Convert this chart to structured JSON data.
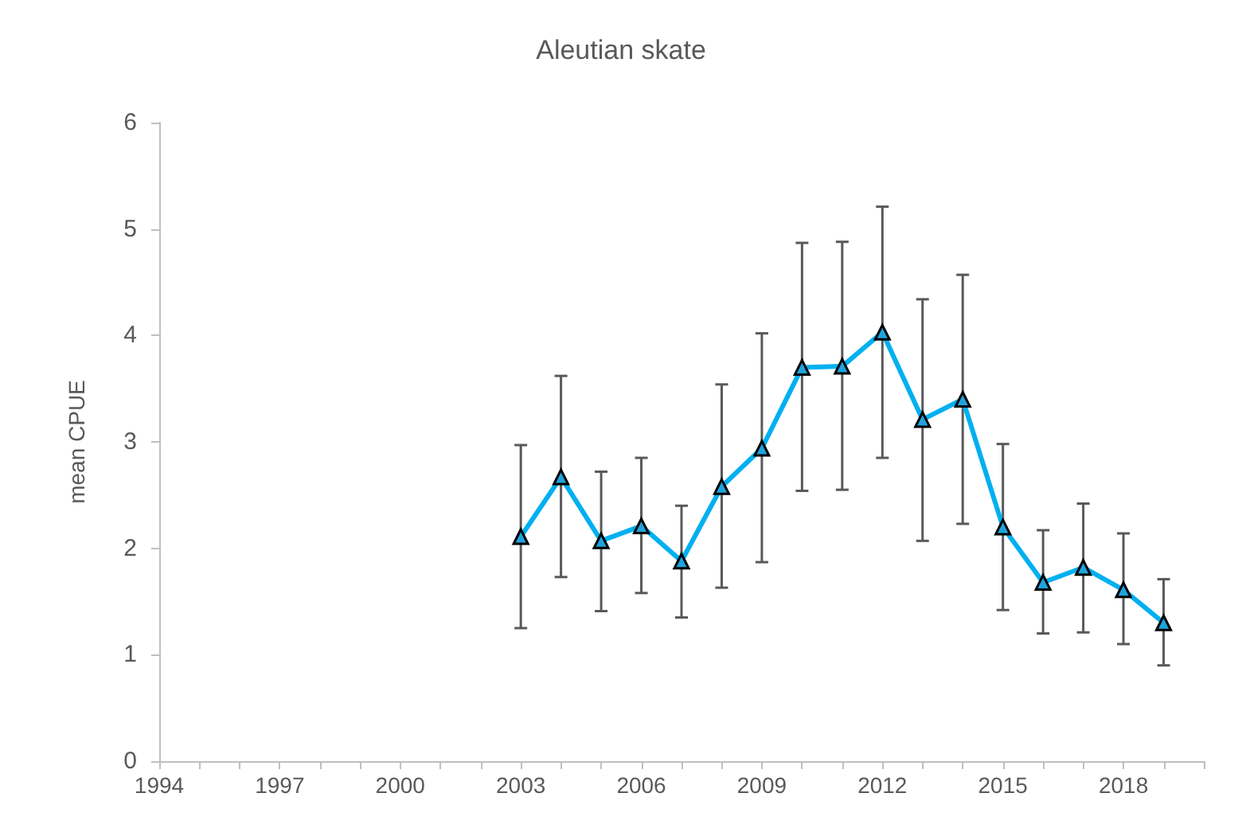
{
  "chart_data": {
    "type": "line",
    "title": "Aleutian skate",
    "ylabel": "mean CPUE",
    "x": [
      2003,
      2004,
      2005,
      2006,
      2007,
      2008,
      2009,
      2010,
      2011,
      2012,
      2013,
      2014,
      2015,
      2016,
      2017,
      2018,
      2019
    ],
    "series": [
      {
        "color": "#00b0f0",
        "values": [
          2.11,
          2.67,
          2.07,
          2.21,
          1.88,
          2.58,
          2.94,
          3.7,
          3.71,
          4.03,
          3.21,
          3.4,
          2.2,
          1.68,
          1.82,
          1.61,
          1.3
        ],
        "errors": [
          [
            1.25,
            2.97
          ],
          [
            1.73,
            3.62
          ],
          [
            1.41,
            2.72
          ],
          [
            1.58,
            2.85
          ],
          [
            1.35,
            2.4
          ],
          [
            1.63,
            3.54
          ],
          [
            1.87,
            4.02
          ],
          [
            2.54,
            4.87
          ],
          [
            2.55,
            4.88
          ],
          [
            2.85,
            5.21
          ],
          [
            2.07,
            4.34
          ],
          [
            2.23,
            4.57
          ],
          [
            1.42,
            2.98
          ],
          [
            1.2,
            2.17
          ],
          [
            1.21,
            2.42
          ],
          [
            1.1,
            2.14
          ],
          [
            0.9,
            1.71
          ]
        ]
      }
    ],
    "xlim": [
      1994,
      2020
    ],
    "xticks": [
      1994,
      {
        "value": 1995,
        "label": null
      },
      {
        "value": 1996,
        "label": null
      },
      1997,
      {
        "value": 1998,
        "label": null
      },
      {
        "value": 1999,
        "label": null
      },
      2000,
      {
        "value": 2001,
        "label": null
      },
      {
        "value": 2002,
        "label": null
      },
      2003,
      {
        "value": 2004,
        "label": null
      },
      {
        "value": 2005,
        "label": null
      },
      2006,
      {
        "value": 2007,
        "label": null
      },
      {
        "value": 2008,
        "label": null
      },
      2009,
      {
        "value": 2010,
        "label": null
      },
      {
        "value": 2011,
        "label": null
      },
      2012,
      {
        "value": 2013,
        "label": null
      },
      {
        "value": 2014,
        "label": null
      },
      2015,
      {
        "value": 2016,
        "label": null
      },
      {
        "value": 2017,
        "label": null
      },
      2018,
      {
        "value": 2019,
        "label": null
      },
      {
        "value": 2020,
        "label": null
      }
    ],
    "ylim": [
      0,
      6
    ],
    "yticks": [
      0,
      1,
      2,
      3,
      4,
      5,
      6
    ],
    "marker": "triangle",
    "line_style": "solid"
  }
}
